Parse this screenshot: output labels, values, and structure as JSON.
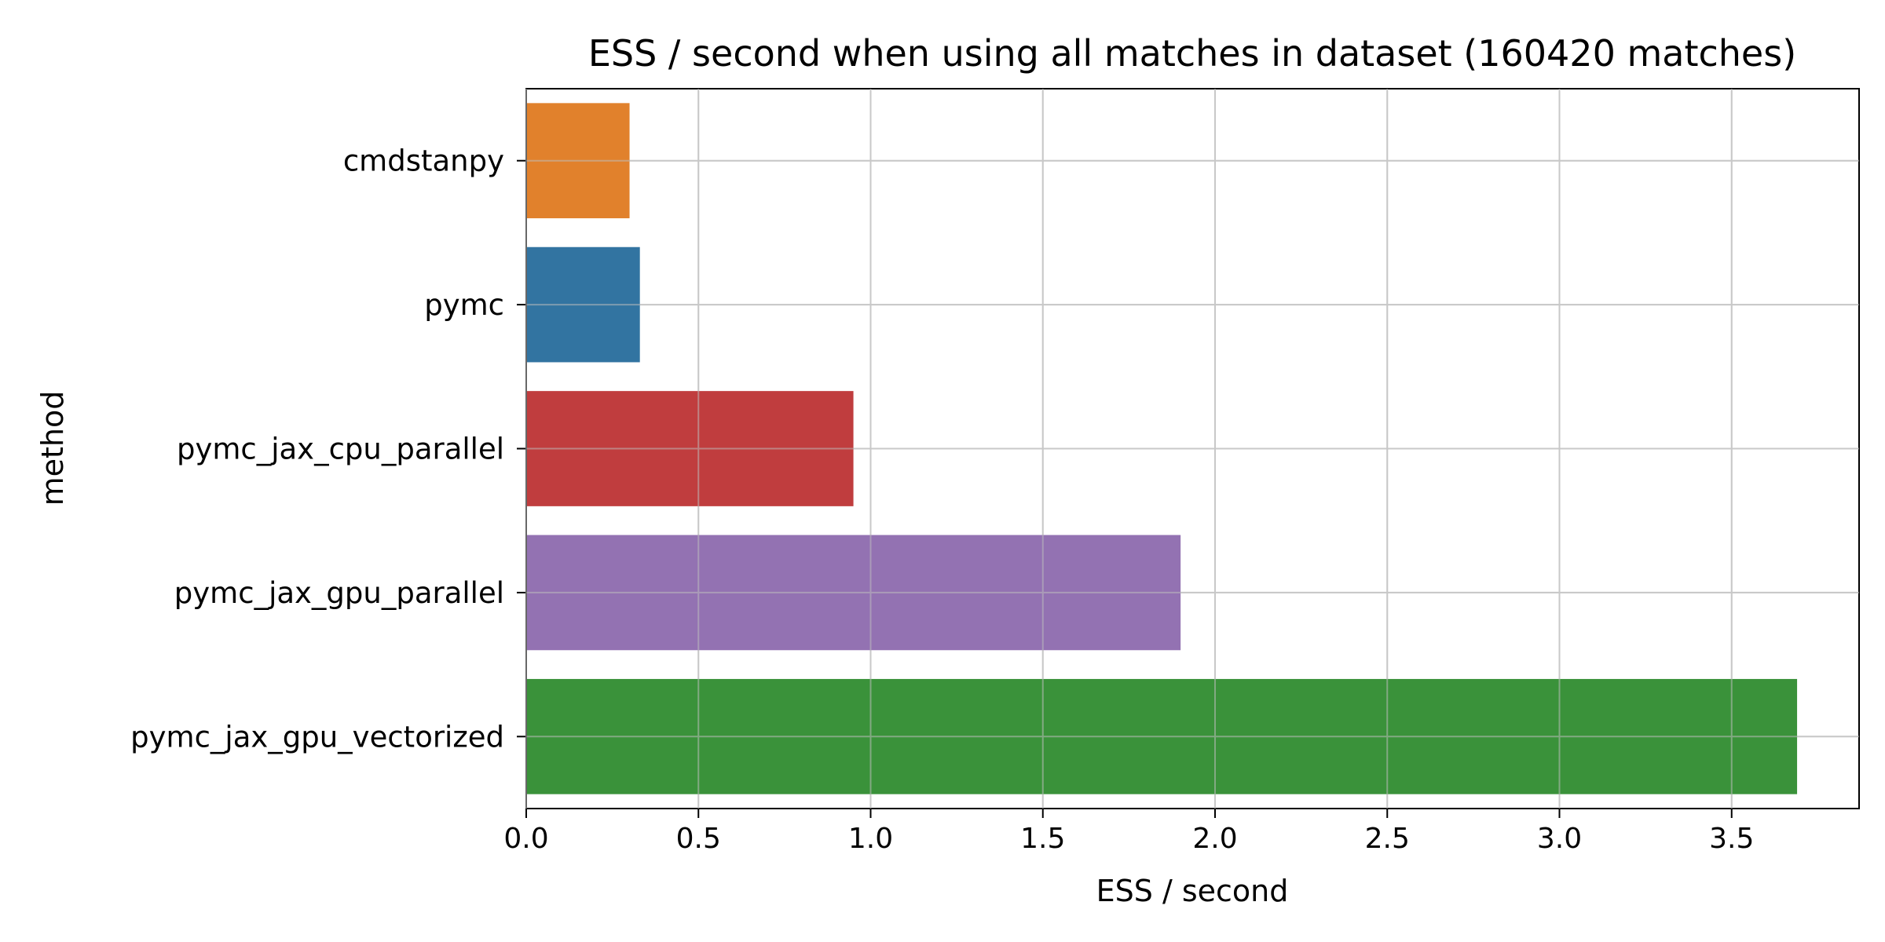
{
  "chart_data": {
    "type": "bar",
    "orientation": "horizontal",
    "title": "ESS / second when using all matches in dataset (160420 matches)",
    "xlabel": "ESS / second",
    "ylabel": "method",
    "xlim": [
      0,
      3.87
    ],
    "xticks": [
      "0.0",
      "0.5",
      "1.0",
      "1.5",
      "2.0",
      "2.5",
      "3.0",
      "3.5"
    ],
    "grid": true,
    "categories": [
      "cmdstanpy",
      "pymc",
      "pymc_jax_cpu_parallel",
      "pymc_jax_gpu_parallel",
      "pymc_jax_gpu_vectorized"
    ],
    "values": [
      0.3,
      0.33,
      0.95,
      1.9,
      3.69
    ],
    "colors": [
      "#e1812c",
      "#3274a1",
      "#c03d3e",
      "#9372b2",
      "#3a923a"
    ]
  }
}
